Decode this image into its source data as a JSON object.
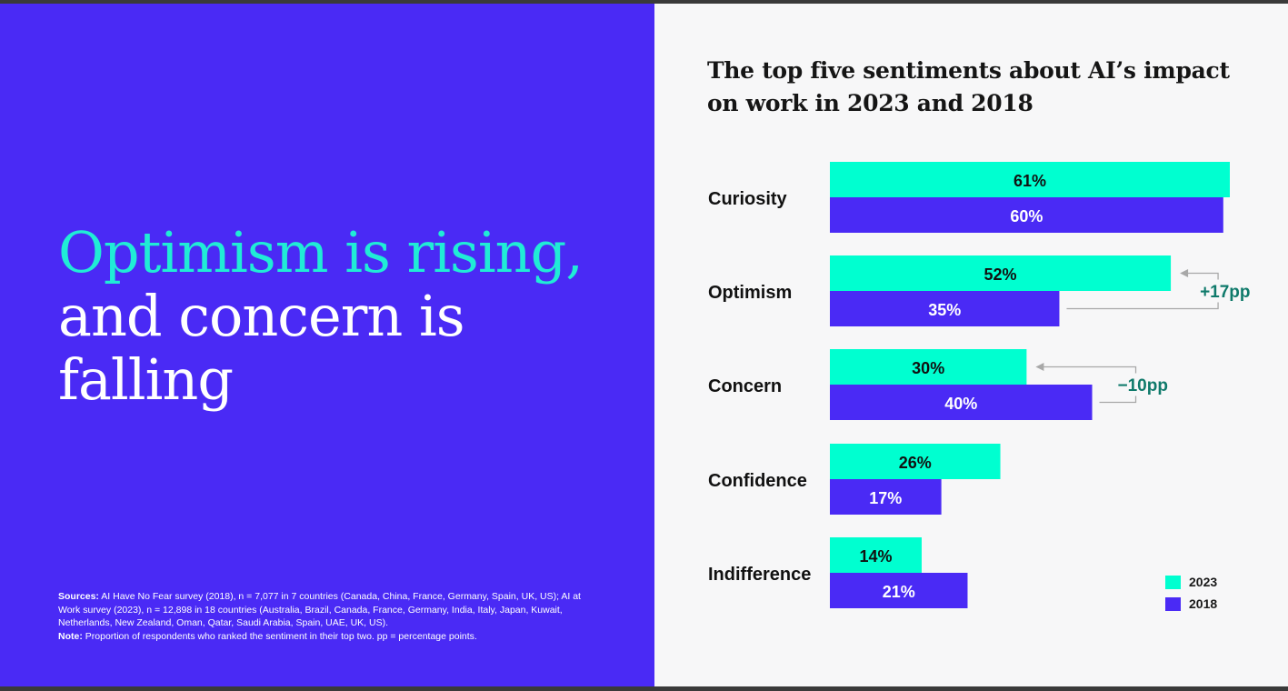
{
  "headline": {
    "line1": "Optimism is rising,",
    "line2": "and concern is",
    "line3": "falling"
  },
  "sources": {
    "sources_label": "Sources:",
    "sources_text": "AI Have No Fear survey (2018), n = 7,077 in 7 countries (Canada, China, France, Germany, Spain, UK, US); AI at Work survey (2023), n = 12,898 in 18 countries (Australia, Brazil, Canada, France, Germany, India, Italy, Japan, Kuwait, Netherlands, New Zealand, Oman, Qatar, Saudi Arabia, Spain, UAE, UK, US).",
    "note_label": "Note:",
    "note_text": "Proportion of respondents who ranked the sentiment in their top two. pp = percentage points."
  },
  "colors": {
    "left_background": "#4a2af5",
    "right_background": "#f7f7f8",
    "accent_teal": "#20ecd6",
    "series_2023": "#00ffd0",
    "series_2018": "#4a2af5",
    "annotation_teal": "#0f7a6b"
  },
  "chart_data": {
    "type": "bar",
    "orientation": "horizontal",
    "title_line1": "The top five sentiments about AI’s impact",
    "title_line2": "on work in 2023 and 2018",
    "categories": [
      "Curiosity",
      "Optimism",
      "Concern",
      "Confidence",
      "Indifference"
    ],
    "series": [
      {
        "name": "2023",
        "values": [
          61,
          52,
          30,
          26,
          14
        ],
        "labels": [
          "61%",
          "52%",
          "30%",
          "26%",
          "14%"
        ]
      },
      {
        "name": "2018",
        "values": [
          60,
          35,
          40,
          17,
          21
        ],
        "labels": [
          "60%",
          "35%",
          "40%",
          "17%",
          "21%"
        ]
      }
    ],
    "annotations": [
      {
        "category": "Optimism",
        "text": "+17pp"
      },
      {
        "category": "Concern",
        "text": "−10pp"
      }
    ],
    "legend": {
      "position": "bottom-right",
      "entries": [
        "2023",
        "2018"
      ]
    },
    "xlim": [
      0,
      61
    ],
    "grid": false,
    "axes_visible": false
  }
}
